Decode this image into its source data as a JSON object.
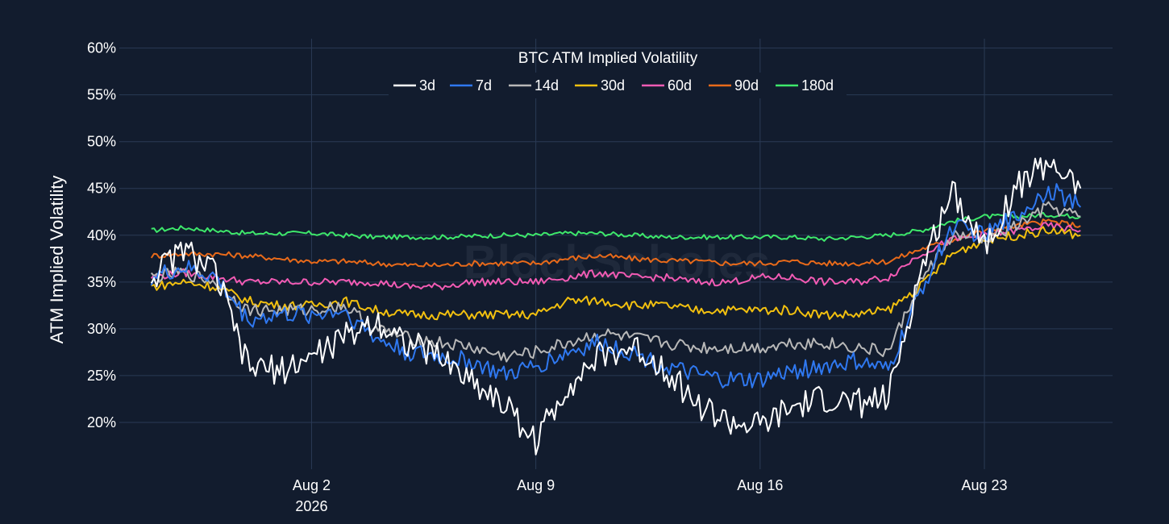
{
  "chart_data": {
    "type": "line",
    "title": "BTC ATM Implied Volatility",
    "ylabel": "ATM Implied Volatility",
    "xlabel": "",
    "ylim": [
      15,
      61
    ],
    "xlim": [
      "2026-07-27",
      "2026-08-27"
    ],
    "y_ticks": [
      20,
      25,
      30,
      35,
      40,
      45,
      50,
      55,
      60
    ],
    "y_tick_labels": [
      "20%",
      "25%",
      "30%",
      "35%",
      "40%",
      "45%",
      "50%",
      "55%",
      "60%"
    ],
    "x_ticks": [
      "2026-08-02",
      "2026-08-09",
      "2026-08-16",
      "2026-08-23"
    ],
    "x_tick_labels": [
      "Aug 2",
      "Aug 9",
      "Aug 16",
      "Aug 23"
    ],
    "x_tick_year_label": "2026",
    "grid": true,
    "legend_position": "top-center",
    "watermark": "BlockScholes",
    "series": [
      {
        "name": "3d",
        "color": "#ffffff",
        "x": [
          "2026-07-28",
          "2026-07-29",
          "2026-07-30",
          "2026-07-31",
          "2026-08-01",
          "2026-08-02",
          "2026-08-03",
          "2026-08-04",
          "2026-08-05",
          "2026-08-06",
          "2026-08-07",
          "2026-08-08",
          "2026-08-09",
          "2026-08-10",
          "2026-08-11",
          "2026-08-12",
          "2026-08-13",
          "2026-08-14",
          "2026-08-15",
          "2026-08-16",
          "2026-08-17",
          "2026-08-18",
          "2026-08-19",
          "2026-08-20",
          "2026-08-21",
          "2026-08-22",
          "2026-08-23",
          "2026-08-24",
          "2026-08-25",
          "2026-08-26"
        ],
        "values": [
          35.5,
          38.5,
          36,
          26,
          25.5,
          27,
          29,
          31,
          28.5,
          27,
          24.5,
          22,
          18,
          24,
          27,
          28,
          26,
          22,
          20,
          19.5,
          21.5,
          22.5,
          22,
          22.5,
          36,
          45,
          39,
          45,
          48,
          45
        ]
      },
      {
        "name": "7d",
        "color": "#2f78f0",
        "x": [
          "2026-07-28",
          "2026-07-29",
          "2026-07-30",
          "2026-07-31",
          "2026-08-01",
          "2026-08-02",
          "2026-08-03",
          "2026-08-04",
          "2026-08-05",
          "2026-08-06",
          "2026-08-07",
          "2026-08-08",
          "2026-08-09",
          "2026-08-10",
          "2026-08-11",
          "2026-08-12",
          "2026-08-13",
          "2026-08-14",
          "2026-08-15",
          "2026-08-16",
          "2026-08-17",
          "2026-08-18",
          "2026-08-19",
          "2026-08-20",
          "2026-08-21",
          "2026-08-22",
          "2026-08-23",
          "2026-08-24",
          "2026-08-25",
          "2026-08-26"
        ],
        "values": [
          35.5,
          36.5,
          35.5,
          31,
          31.5,
          31.5,
          32,
          29,
          27.5,
          27,
          26.5,
          25,
          26,
          27.5,
          28.5,
          27.5,
          26,
          25,
          24.5,
          24.5,
          25.5,
          26,
          26.5,
          25.5,
          34,
          41,
          40,
          42,
          45,
          43
        ]
      },
      {
        "name": "14d",
        "color": "#b8b8b8",
        "x": [
          "2026-07-28",
          "2026-07-29",
          "2026-07-30",
          "2026-07-31",
          "2026-08-01",
          "2026-08-02",
          "2026-08-03",
          "2026-08-04",
          "2026-08-05",
          "2026-08-06",
          "2026-08-07",
          "2026-08-08",
          "2026-08-09",
          "2026-08-10",
          "2026-08-11",
          "2026-08-12",
          "2026-08-13",
          "2026-08-14",
          "2026-08-15",
          "2026-08-16",
          "2026-08-17",
          "2026-08-18",
          "2026-08-19",
          "2026-08-20",
          "2026-08-21",
          "2026-08-22",
          "2026-08-23",
          "2026-08-24",
          "2026-08-25",
          "2026-08-26"
        ],
        "values": [
          35.5,
          36,
          35,
          32,
          32,
          32,
          32.5,
          30,
          29,
          28.5,
          28,
          27,
          27.5,
          28.5,
          29.5,
          29,
          28.5,
          28,
          28,
          28,
          28.5,
          28.5,
          28,
          27.5,
          35,
          40,
          39.5,
          41,
          43,
          42
        ]
      },
      {
        "name": "30d",
        "color": "#f2c00f",
        "x": [
          "2026-07-28",
          "2026-07-29",
          "2026-07-30",
          "2026-07-31",
          "2026-08-01",
          "2026-08-02",
          "2026-08-03",
          "2026-08-04",
          "2026-08-05",
          "2026-08-06",
          "2026-08-07",
          "2026-08-08",
          "2026-08-09",
          "2026-08-10",
          "2026-08-11",
          "2026-08-12",
          "2026-08-13",
          "2026-08-14",
          "2026-08-15",
          "2026-08-16",
          "2026-08-17",
          "2026-08-18",
          "2026-08-19",
          "2026-08-20",
          "2026-08-21",
          "2026-08-22",
          "2026-08-23",
          "2026-08-24",
          "2026-08-25",
          "2026-08-26"
        ],
        "values": [
          34.5,
          35,
          34.5,
          33,
          32.5,
          32.5,
          33,
          32,
          31.5,
          31.5,
          31.5,
          31.5,
          31.5,
          33,
          33,
          32.5,
          32.5,
          32,
          32,
          32,
          32,
          31.5,
          31.5,
          32,
          34.5,
          38,
          39.5,
          40,
          40.5,
          40
        ]
      },
      {
        "name": "60d",
        "color": "#f25bb4",
        "x": [
          "2026-07-28",
          "2026-07-29",
          "2026-07-30",
          "2026-07-31",
          "2026-08-01",
          "2026-08-02",
          "2026-08-03",
          "2026-08-04",
          "2026-08-05",
          "2026-08-06",
          "2026-08-07",
          "2026-08-08",
          "2026-08-09",
          "2026-08-10",
          "2026-08-11",
          "2026-08-12",
          "2026-08-13",
          "2026-08-14",
          "2026-08-15",
          "2026-08-16",
          "2026-08-17",
          "2026-08-18",
          "2026-08-19",
          "2026-08-20",
          "2026-08-21",
          "2026-08-22",
          "2026-08-23",
          "2026-08-24",
          "2026-08-25",
          "2026-08-26"
        ],
        "values": [
          35.5,
          36,
          35.5,
          35,
          35,
          35,
          35,
          35,
          34.5,
          34.5,
          35,
          35,
          35,
          35.5,
          36,
          35.5,
          35.5,
          35,
          35,
          35.5,
          35.5,
          35,
          35,
          35.5,
          38,
          39.5,
          40,
          40.5,
          41,
          40.5
        ]
      },
      {
        "name": "90d",
        "color": "#e86a1a",
        "x": [
          "2026-07-28",
          "2026-07-29",
          "2026-07-30",
          "2026-07-31",
          "2026-08-01",
          "2026-08-02",
          "2026-08-03",
          "2026-08-04",
          "2026-08-05",
          "2026-08-06",
          "2026-08-07",
          "2026-08-08",
          "2026-08-09",
          "2026-08-10",
          "2026-08-11",
          "2026-08-12",
          "2026-08-13",
          "2026-08-14",
          "2026-08-15",
          "2026-08-16",
          "2026-08-17",
          "2026-08-18",
          "2026-08-19",
          "2026-08-20",
          "2026-08-21",
          "2026-08-22",
          "2026-08-23",
          "2026-08-24",
          "2026-08-25",
          "2026-08-26"
        ],
        "values": [
          37.8,
          38,
          38,
          37.8,
          37.5,
          37.2,
          37.2,
          37,
          36.8,
          36.8,
          37,
          37,
          37,
          37.5,
          37.8,
          37.5,
          37.3,
          37.2,
          37,
          37,
          37.2,
          37,
          37,
          37.2,
          38.5,
          39.5,
          40.5,
          41,
          41.5,
          41
        ]
      },
      {
        "name": "180d",
        "color": "#3ee86b",
        "x": [
          "2026-07-28",
          "2026-07-29",
          "2026-07-30",
          "2026-07-31",
          "2026-08-01",
          "2026-08-02",
          "2026-08-03",
          "2026-08-04",
          "2026-08-05",
          "2026-08-06",
          "2026-08-07",
          "2026-08-08",
          "2026-08-09",
          "2026-08-10",
          "2026-08-11",
          "2026-08-12",
          "2026-08-13",
          "2026-08-14",
          "2026-08-15",
          "2026-08-16",
          "2026-08-17",
          "2026-08-18",
          "2026-08-19",
          "2026-08-20",
          "2026-08-21",
          "2026-08-22",
          "2026-08-23",
          "2026-08-24",
          "2026-08-25",
          "2026-08-26"
        ],
        "values": [
          40.5,
          40.8,
          40.5,
          40.2,
          40.2,
          40.2,
          40,
          39.8,
          39.8,
          39.8,
          39.9,
          40,
          40,
          40.2,
          40.2,
          40,
          39.8,
          39.8,
          39.8,
          39.8,
          39.8,
          39.6,
          39.8,
          40,
          40.5,
          41.5,
          42,
          42,
          42.2,
          42
        ]
      }
    ]
  }
}
